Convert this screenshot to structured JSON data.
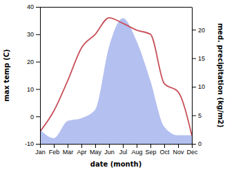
{
  "chart_data": {
    "type": "line",
    "x_label": "date (month)",
    "y_label": "max temp (C)",
    "y2_label": "med. precipitation (kg/m2)",
    "categories": [
      "Jan",
      "Feb",
      "Mar",
      "Apr",
      "May",
      "Jun",
      "Jul",
      "Aug",
      "Sep",
      "Oct",
      "Nov",
      "Dec"
    ],
    "series": [
      {
        "name": "max temp (C)",
        "type": "line",
        "color": "#c8505a",
        "values": [
          -5.5,
          2,
          13,
          25,
          30,
          36,
          34,
          31.5,
          30,
          12,
          9,
          -7
        ]
      },
      {
        "name": "med. precipitation (kg/m2)",
        "type": "area",
        "color": "#b4c0f0",
        "axis": "y2",
        "values": [
          2.5,
          1,
          4,
          4.5,
          6,
          17,
          22,
          18,
          11,
          3,
          1.5,
          1.5
        ]
      }
    ],
    "ylim": [
      -10,
      40
    ],
    "yticks": [
      -10,
      0,
      10,
      20,
      30,
      40
    ],
    "y2lim": [
      0,
      24
    ],
    "y2ticks": [
      0,
      5,
      10,
      15,
      20
    ],
    "grid": false
  }
}
